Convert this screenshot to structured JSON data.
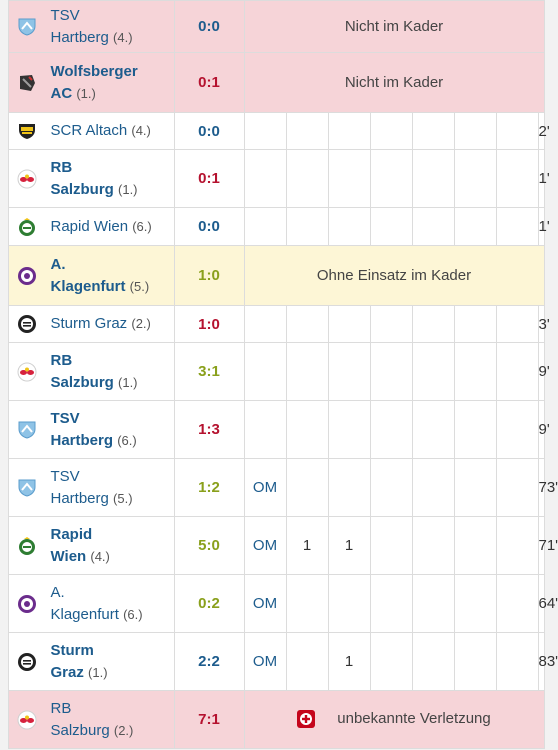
{
  "rows": [
    {
      "club": "TSV Hartberg",
      "club_lines": [
        "TSV",
        "Hartberg"
      ],
      "rank": "(4.)",
      "bold": false,
      "logo": "hartberg-crest-icon",
      "score": "0:0",
      "result": "draw",
      "note": "Nicht im Kader",
      "bg": "pink"
    },
    {
      "club": "Wolfsberger AC",
      "club_lines": [
        "Wolfsberger",
        "AC"
      ],
      "rank": "(1.)",
      "bold": true,
      "logo": "wolfsberg-crest-icon",
      "score": "0:1",
      "result": "loss",
      "note": "Nicht im Kader",
      "bg": "pink"
    },
    {
      "club": "SCR Altach",
      "club_lines": [
        "SCR Altach"
      ],
      "rank": "(4.)",
      "bold": false,
      "logo": "altach-crest-icon",
      "score": "0:0",
      "result": "draw",
      "minutes": "2'",
      "bg": "white"
    },
    {
      "club": "RB Salzburg",
      "club_lines": [
        "RB",
        "Salzburg"
      ],
      "rank": "(1.)",
      "bold": true,
      "logo": "salzburg-crest-icon",
      "score": "0:1",
      "result": "loss",
      "minutes": "1'",
      "bg": "white"
    },
    {
      "club": "Rapid Wien",
      "club_lines": [
        "Rapid Wien"
      ],
      "rank": "(6.)",
      "bold": false,
      "logo": "rapid-crest-icon",
      "score": "0:0",
      "result": "draw",
      "minutes": "1'",
      "bg": "white"
    },
    {
      "club": "A. Klagenfurt",
      "club_lines": [
        "A.",
        "Klagenfurt"
      ],
      "rank": "(5.)",
      "bold": true,
      "logo": "klagenfurt-crest-icon",
      "score": "1:0",
      "result": "win",
      "note": "Ohne Einsatz im Kader",
      "bg": "yellow"
    },
    {
      "club": "Sturm Graz",
      "club_lines": [
        "Sturm Graz"
      ],
      "rank": "(2.)",
      "bold": false,
      "logo": "sturm-crest-icon",
      "score": "1:0",
      "result": "loss",
      "minutes": "3'",
      "bg": "white"
    },
    {
      "club": "RB Salzburg",
      "club_lines": [
        "RB",
        "Salzburg"
      ],
      "rank": "(1.)",
      "bold": true,
      "logo": "salzburg-crest-icon",
      "score": "3:1",
      "result": "win",
      "minutes": "9'",
      "bg": "white"
    },
    {
      "club": "TSV Hartberg",
      "club_lines": [
        "TSV",
        "Hartberg"
      ],
      "rank": "(6.)",
      "bold": true,
      "logo": "hartberg-crest-icon",
      "score": "1:3",
      "result": "loss",
      "minutes": "9'",
      "bg": "white"
    },
    {
      "club": "TSV Hartberg",
      "club_lines": [
        "TSV",
        "Hartberg"
      ],
      "rank": "(5.)",
      "bold": false,
      "logo": "hartberg-crest-icon",
      "score": "1:2",
      "result": "win",
      "position": "OM",
      "minutes": "73'",
      "bg": "white"
    },
    {
      "club": "Rapid Wien",
      "club_lines": [
        "Rapid",
        "Wien"
      ],
      "rank": "(4.)",
      "bold": true,
      "logo": "rapid-crest-icon",
      "score": "5:0",
      "result": "win",
      "position": "OM",
      "goals": "1",
      "assists": "1",
      "minutes": "71'",
      "bg": "white"
    },
    {
      "club": "A. Klagenfurt",
      "club_lines": [
        "A.",
        "Klagenfurt"
      ],
      "rank": "(6.)",
      "bold": false,
      "logo": "klagenfurt-crest-icon",
      "score": "0:2",
      "result": "win",
      "position": "OM",
      "minutes": "64'",
      "bg": "white"
    },
    {
      "club": "Sturm Graz",
      "club_lines": [
        "Sturm",
        "Graz"
      ],
      "rank": "(1.)",
      "bold": true,
      "logo": "sturm-crest-icon",
      "score": "2:2",
      "result": "draw",
      "position": "OM",
      "assists": "1",
      "minutes": "83'",
      "bg": "white"
    },
    {
      "club": "RB Salzburg",
      "club_lines": [
        "RB",
        "Salzburg"
      ],
      "rank": "(2.)",
      "bold": false,
      "logo": "salzburg-crest-icon",
      "score": "7:1",
      "result": "loss",
      "injury": "unbekannte Verletzung",
      "injury_icon": "injury-cross-icon",
      "bg": "pink"
    }
  ],
  "colors": {
    "win": "#8aa01c",
    "loss": "#b5122f",
    "draw": "#1d5c8d",
    "pink_row": "#f6d4d8",
    "yellow_row": "#fdf6d6",
    "link": "#1d5c8d",
    "injury": "#c5051c"
  }
}
